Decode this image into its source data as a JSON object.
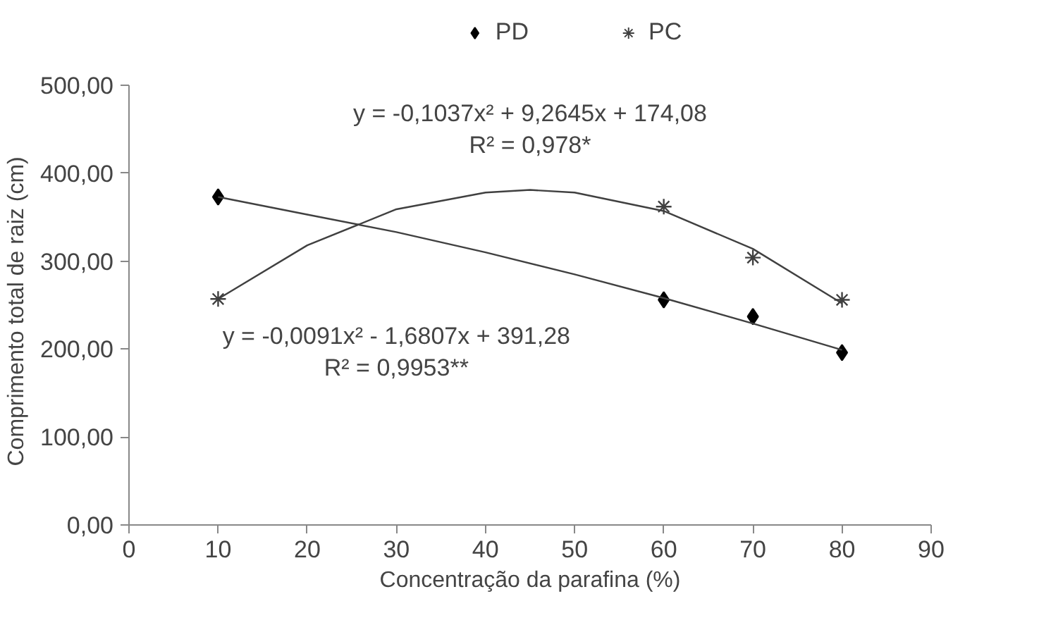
{
  "chart_data": {
    "type": "scatter",
    "xlabel": "Concentração da parafina (%)",
    "ylabel": "Comprimento  total de raiz  (cm)",
    "x": [
      10,
      60,
      70,
      80
    ],
    "series": [
      {
        "name": "PD",
        "color": "#000000",
        "marker": "diamond",
        "values": [
          373,
          256,
          237,
          196
        ]
      },
      {
        "name": "PC",
        "color": "#404040",
        "marker": "cross",
        "values": [
          257,
          362,
          304,
          256
        ]
      },
      {
        "type": "line",
        "color": "#404040",
        "marker": "none",
        "x": [
          10,
          20,
          30,
          40,
          50,
          60,
          70,
          80
        ],
        "values": [
          373,
          353,
          333,
          310,
          285,
          258,
          229,
          199
        ]
      },
      {
        "type": "line",
        "color": "#404040",
        "marker": "none",
        "x": [
          10,
          20,
          30,
          40,
          45,
          50,
          60,
          70,
          80
        ],
        "values": [
          257,
          318,
          359,
          378,
          381,
          378,
          357,
          314,
          252
        ]
      }
    ],
    "annotations": [
      "y = -0,1037x² + 9,2645x + 174,08",
      "R² = 0,978*",
      "y = -0,0091x² - 1,6807x + 391,28",
      "R² = 0,9953**"
    ],
    "xlim": [
      0,
      90
    ],
    "xticks": [
      0,
      10,
      20,
      30,
      40,
      50,
      60,
      70,
      80,
      90
    ],
    "ylim": [
      0,
      500
    ],
    "yticks": [
      {
        "value": 0,
        "label": "0,00"
      },
      {
        "value": 100,
        "label": "100,00"
      },
      {
        "value": 200,
        "label": "200,00"
      },
      {
        "value": 300,
        "label": "300,00"
      },
      {
        "value": 400,
        "label": "400,00"
      },
      {
        "value": 500,
        "label": "500,00"
      }
    ],
    "legend": "top",
    "grid": false
  }
}
